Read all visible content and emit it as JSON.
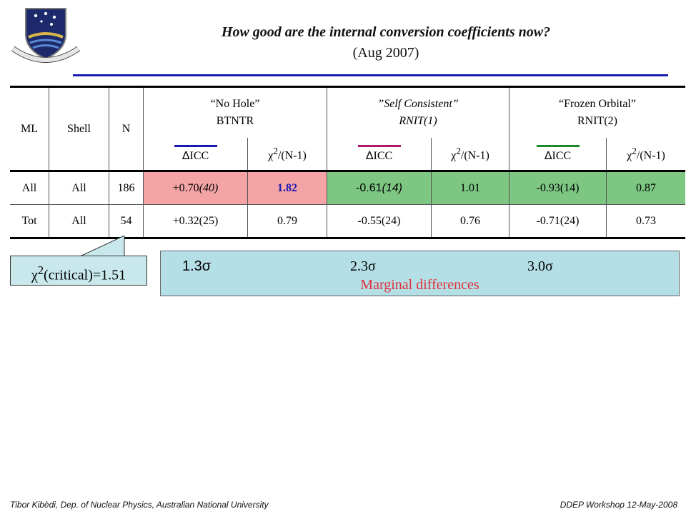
{
  "header": {
    "logo_motto": "NATURAM PRIMUM COGNOSCERE RERUM",
    "title": "How good are the internal conversion coefficients now?",
    "subtitle": "(Aug 2007)"
  },
  "table": {
    "col_ml": "ML",
    "col_shell": "Shell",
    "col_n": "N",
    "groups": [
      {
        "name": "“No Hole”",
        "code": "BTNTR"
      },
      {
        "name": "”Self Consistent”",
        "code": "RNIT(1)"
      },
      {
        "name": "“Frozen Orbital”",
        "code": "RNIT(2)"
      }
    ],
    "sub_delta": "ΔICC",
    "sub_delta_symbol": "Δ",
    "sub_delta_text": "ICC",
    "sub_chi_prefix": "χ",
    "sub_chi_sup": "2",
    "sub_chi_suffix": "/(N-1)",
    "rows": [
      {
        "ml": "All",
        "shell": "All",
        "n": "186",
        "d1": "+0.70",
        "d1_err": "(40)",
        "c1": "1.82",
        "d2": "-0.61",
        "d2_err": "(14)",
        "c2": "1.01",
        "d3": "-0.93(14)",
        "c3": "0.87"
      },
      {
        "ml": "Tot",
        "shell": "All",
        "n": "54",
        "d1": "+0.32(25)",
        "c1": "0.79",
        "d2": "-0.55(24)",
        "c2": "0.76",
        "d3": "-0.71(24)",
        "c3": "0.73"
      }
    ]
  },
  "callout": {
    "prefix": "χ",
    "sup": "2",
    "suffix": "(critical)=1.51"
  },
  "significance": {
    "s1": "1.3σ",
    "s2": "2.3σ",
    "s3": "3.0σ",
    "note": "Marginal differences"
  },
  "footer": {
    "left": "Tibor Kibèdi, Dep. of Nuclear Physics, Australian National University",
    "right": "DDEP Workshop 12-May-2008"
  },
  "colors": {
    "accent_blue": "#1a1ab0",
    "pink_cell": "#f4a4a4",
    "green_cell": "#7dc783",
    "callout_bg": "#c8e8ec",
    "red_text": "#e0303a"
  }
}
